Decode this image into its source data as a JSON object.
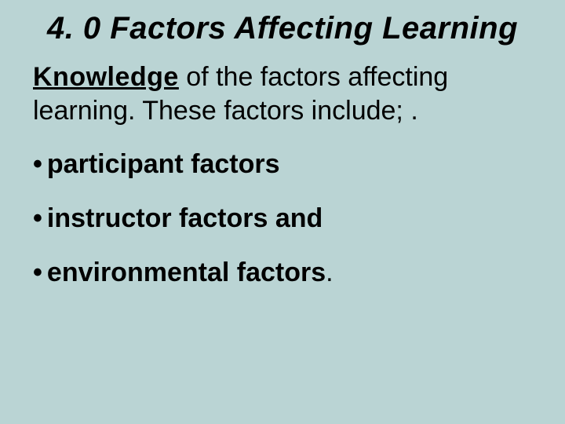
{
  "slide": {
    "background_color": "#bad4d4",
    "text_color": "#000000",
    "title": "4. 0 Factors Affecting Learning",
    "title_fontsize": 40,
    "title_fontweight": 900,
    "title_italic": true,
    "intro": {
      "keyword": "Knowledge",
      "text_after_keyword": " of the factors affecting learning. These factors include; .",
      "fontsize": 34,
      "keyword_bold": true,
      "keyword_underline": true
    },
    "bullet_char": "•",
    "bullets": [
      {
        "text": "participant factors",
        "trailing": ""
      },
      {
        "text": "instructor factors and",
        "trailing": ""
      },
      {
        "text": "environmental factors",
        "trailing": "."
      }
    ],
    "bullet_fontsize": 34,
    "bullet_fontweight": 700
  }
}
